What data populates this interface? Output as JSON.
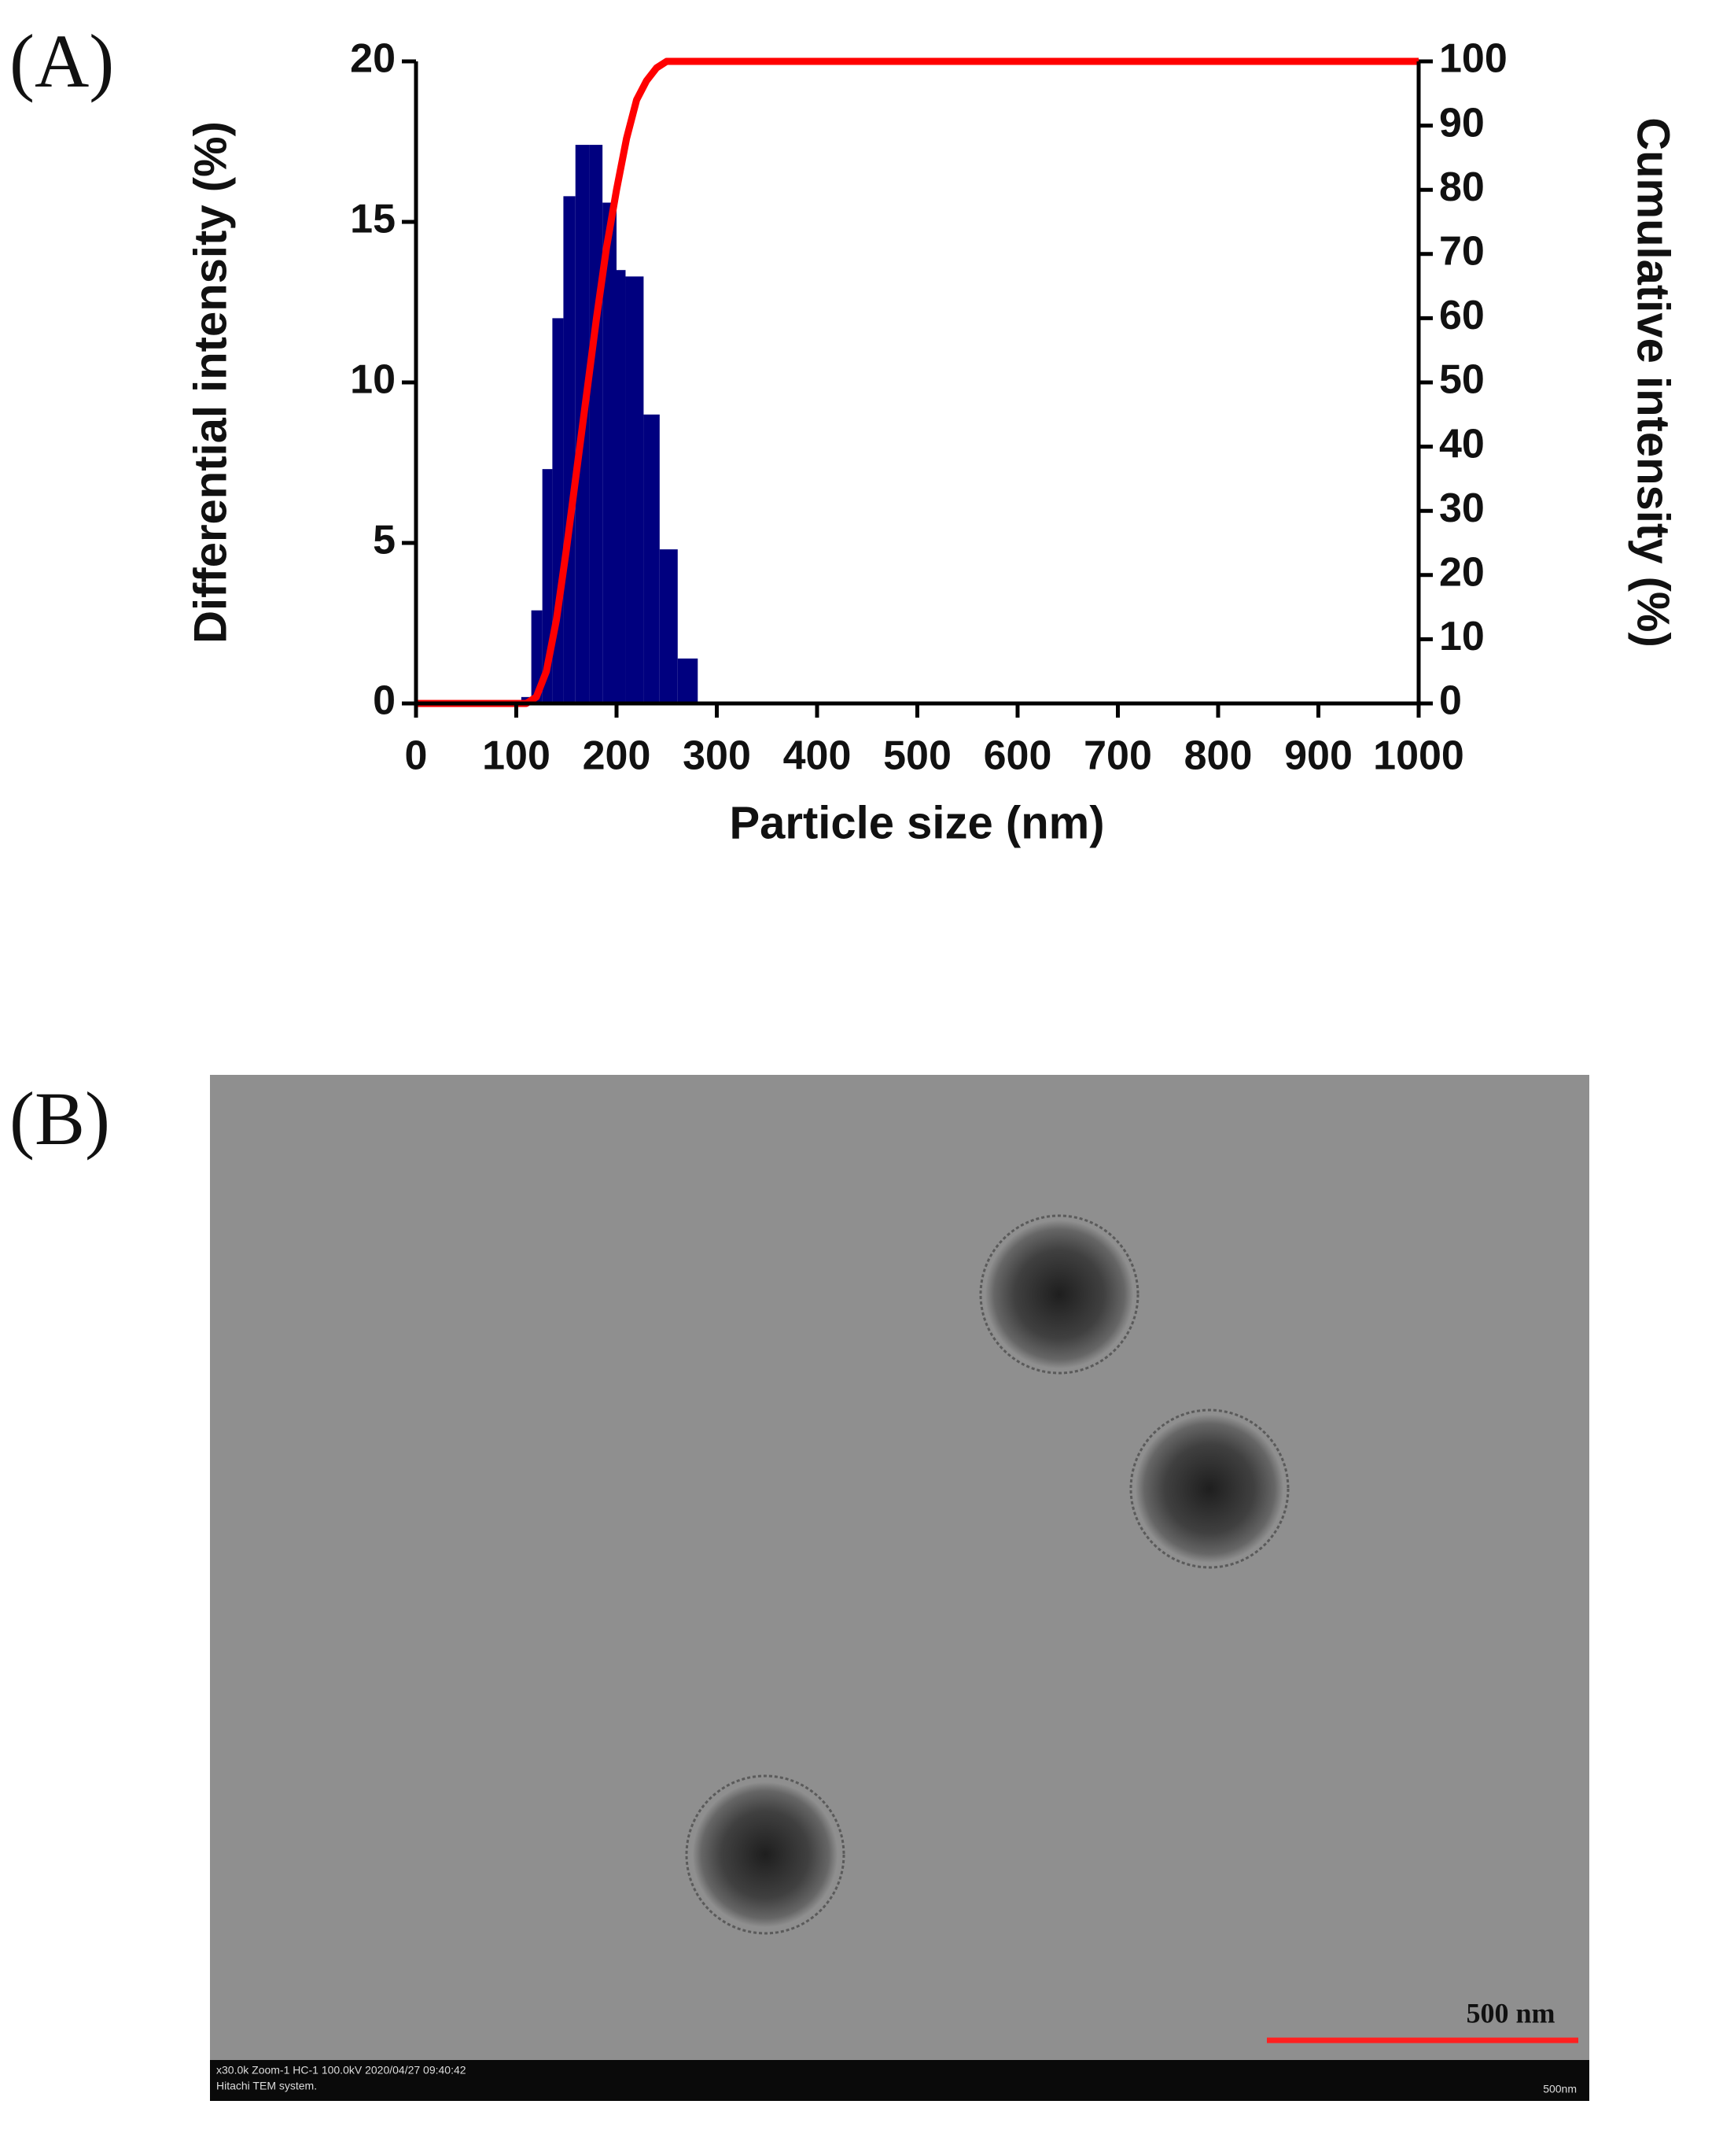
{
  "chart_data": {
    "type": "histogram",
    "panel_label": "(A)",
    "ylabel": "Differential intensity (%)",
    "y2label": "Cumulative intensity (%)",
    "xlabel": "Particle size (nm)",
    "bins": [
      105,
      115,
      126,
      136,
      147,
      159,
      173,
      186,
      200,
      209,
      227,
      243,
      261,
      281
    ],
    "values": [
      0.2,
      2.9,
      7.3,
      12,
      15.8,
      17.4,
      17.4,
      15.6,
      13.5,
      13.3,
      9,
      4.8,
      1.4
    ],
    "color": "#00007f",
    "line": {
      "type": "line",
      "axis": "y2",
      "color": "#ff0000",
      "x": [
        0,
        110,
        120,
        130,
        140,
        150,
        160,
        170,
        180,
        190,
        200,
        210,
        220,
        230,
        240,
        250,
        1000
      ],
      "values": [
        0,
        0,
        1,
        5,
        13,
        24,
        36,
        48,
        60,
        71,
        80,
        88,
        94,
        97,
        99,
        100,
        100
      ]
    },
    "xlim": [
      0,
      1000
    ],
    "xticks": [
      0,
      100,
      200,
      300,
      400,
      500,
      600,
      700,
      800,
      900,
      1000
    ],
    "ylim": [
      0,
      20
    ],
    "yticks": [
      0,
      5,
      10,
      15,
      20
    ],
    "y2lim": [
      0,
      100
    ],
    "y2ticks": [
      0,
      10,
      20,
      30,
      40,
      50,
      60,
      70,
      80,
      90,
      100
    ],
    "grid": false
  },
  "image": {
    "panel_label": "(B)",
    "scale_bar": "500 nm",
    "footer": "x30.0k Zoom-1 HC-1 100.0kV 2020/04/27 09:40:42",
    "footer_line2": "Hitachi TEM system.",
    "footer_scale": "500nm"
  }
}
